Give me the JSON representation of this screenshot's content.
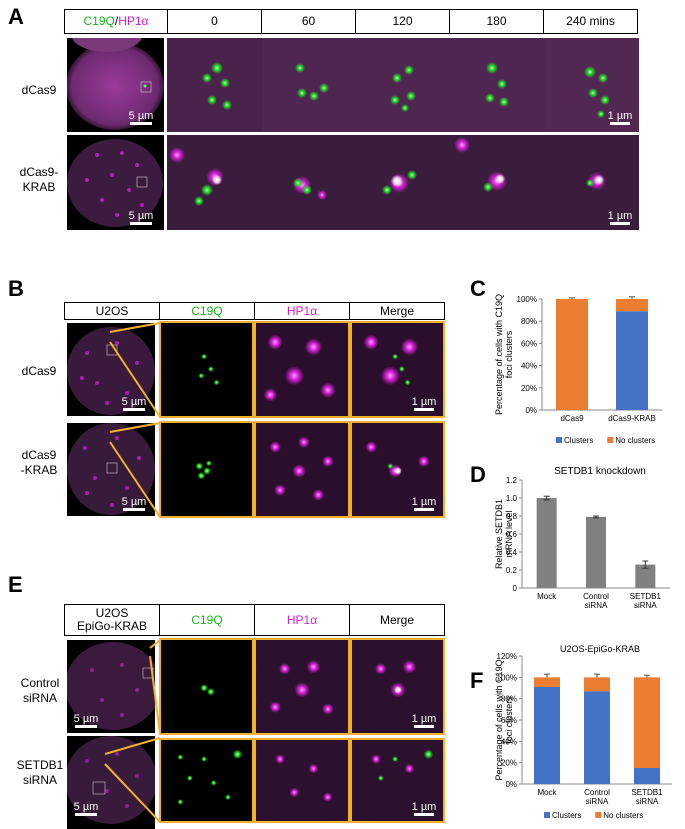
{
  "panels": {
    "A": {
      "letter": "A",
      "header_green": "C19Q",
      "header_sep": " / ",
      "header_magenta": "HP1α",
      "timepoints": [
        "0",
        "60",
        "120",
        "180",
        "240 mins"
      ],
      "rows": [
        {
          "label": "dCas9",
          "scale_nucleus": "5 µm",
          "scale_zoom": "1 µm"
        },
        {
          "label": "dCas9-\nKRAB",
          "scale_nucleus": "5 µm",
          "scale_zoom": "1 µm"
        }
      ]
    },
    "B": {
      "letter": "B",
      "headers": [
        "U2OS",
        "C19Q",
        "HP1α",
        "Merge"
      ],
      "rows": [
        {
          "label": "dCas9",
          "scale_nucleus": "5 µm",
          "scale_zoom": "1 µm"
        },
        {
          "label": "dCas9\n-KRAB",
          "scale_nucleus": "5 µm",
          "scale_zoom": "1 µm"
        }
      ]
    },
    "E": {
      "letter": "E",
      "headers": [
        "U2OS\nEpiGo-KRAB",
        "C19Q",
        "HP1α",
        "Merge"
      ],
      "rows": [
        {
          "label": "Control\nsiRNA",
          "scale_nucleus": "5 µm",
          "scale_zoom": "1 µm"
        },
        {
          "label": "SETDB1\nsiRNA",
          "scale_nucleus": "5 µm",
          "scale_zoom": "1 µm"
        }
      ]
    }
  },
  "colors": {
    "clusters": "#4472c4",
    "no_clusters": "#ed7d31",
    "gray_bar": "#808080",
    "frame": "#f3b12a",
    "green": "#18b418",
    "magenta": "#d01fcf"
  },
  "chart_data": [
    {
      "panel": "C",
      "type": "bar",
      "stacked": true,
      "categories": [
        "dCas9",
        "dCas9-KRAB"
      ],
      "series": [
        {
          "name": "Clusters",
          "values": [
            0,
            89
          ]
        },
        {
          "name": "No clusters",
          "values": [
            100,
            11
          ]
        }
      ],
      "error_top": [
        1,
        2
      ],
      "ylabel": "Percentage of cells with C19Q foci clusters",
      "yticks": [
        "0%",
        "20%",
        "40%",
        "60%",
        "80%",
        "100%"
      ],
      "ylim": [
        0,
        100
      ],
      "legend": "bottom"
    },
    {
      "panel": "D",
      "type": "bar",
      "title": "SETDB1 knockdown",
      "categories": [
        "Mock",
        "Control\nsiRNA",
        "SETDB1\nsiRNA"
      ],
      "values": [
        1.0,
        0.79,
        0.26
      ],
      "errors": [
        0.02,
        0.01,
        0.04
      ],
      "ylabel": "Relative SETDB1 mRNA level",
      "yticks": [
        "0",
        "0.2",
        "0.4",
        "0.6",
        "0.8",
        "1.0",
        "1.2"
      ],
      "ylim": [
        0,
        1.2
      ]
    },
    {
      "panel": "F",
      "type": "bar",
      "stacked": true,
      "title": "U2OS-EpiGo-KRAB",
      "categories": [
        "Mock",
        "Control\nsiRNA",
        "SETDB1\nsiRNA"
      ],
      "series": [
        {
          "name": "Clusters",
          "values": [
            91,
            87,
            15
          ]
        },
        {
          "name": "No clusters",
          "values": [
            9,
            13,
            85
          ]
        }
      ],
      "error_top": [
        3,
        3,
        2
      ],
      "ylabel": "Percentage of cells with C19Q foci clusters",
      "yticks": [
        "0%",
        "20%",
        "40%",
        "60%",
        "80%",
        "100%",
        "120%"
      ],
      "ylim": [
        0,
        120
      ],
      "legend": "bottom"
    }
  ]
}
